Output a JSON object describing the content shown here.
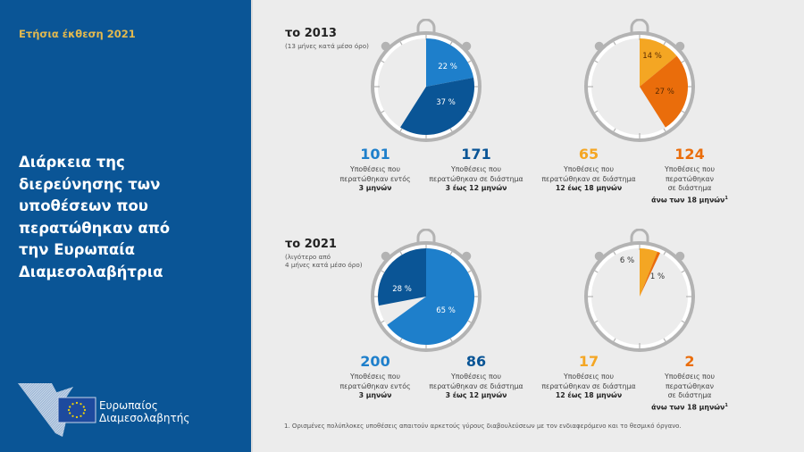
{
  "sidebar": {
    "report": "Ετήσια έκθεση 2021",
    "title_lines": [
      "Διάρκεια της",
      "διερεύνησης των",
      "υποθέσεων που",
      "περατώθηκαν από",
      "την Ευρωπαία",
      "Διαμεσολαβήτρια"
    ],
    "logo_lines": [
      "Ευρωπαίος",
      "Διαμεσολαβητής"
    ]
  },
  "colors": {
    "sidebar_bg": "#0a5596",
    "light_blue": "#1e7fcb",
    "dark_blue": "#0a5596",
    "light_orange": "#f4a623",
    "dark_orange": "#ea6d0b",
    "report_gold": "#e3b94e"
  },
  "sections": [
    {
      "title": "το 2013",
      "sub": [
        "(13 μήνες κατά μέσο όρο)"
      ]
    },
    {
      "title": "το 2021",
      "sub": [
        "(λιγότερο από",
        "4 μήνες κατά μέσο όρο)"
      ]
    }
  ],
  "stats": [
    {
      "num": "101",
      "l1": "Υποθέσεις που",
      "l2": "περατώθηκαν εντός",
      "l3": "",
      "bold": "3 μηνών",
      "sup": ""
    },
    {
      "num": "171",
      "l1": "Υποθέσεις που",
      "l2": "περατώθηκαν σε διάστημα",
      "l3": "",
      "bold": "3 έως 12 μηνών",
      "sup": ""
    },
    {
      "num": "65",
      "l1": "Υποθέσεις που",
      "l2": "περατώθηκαν σε διάστημα",
      "l3": "",
      "bold": "12 έως 18 μηνών",
      "sup": ""
    },
    {
      "num": "124",
      "l1": "Υποθέσεις που",
      "l2": "περατώθηκαν",
      "l3": "σε διάστημα",
      "bold": "άνω των 18 μηνών",
      "sup": "1"
    },
    {
      "num": "200",
      "l1": "Υποθέσεις που",
      "l2": "περατώθηκαν εντός",
      "l3": "",
      "bold": "3 μηνών",
      "sup": ""
    },
    {
      "num": "86",
      "l1": "Υποθέσεις που",
      "l2": "περατώθηκαν σε διάστημα",
      "l3": "",
      "bold": "3 έως 12 μηνών",
      "sup": ""
    },
    {
      "num": "17",
      "l1": "Υποθέσεις που",
      "l2": "περατώθηκαν σε διάστημα",
      "l3": "",
      "bold": "12 έως 18 μηνών",
      "sup": ""
    },
    {
      "num": "2",
      "l1": "Υποθέσεις που",
      "l2": "περατώθηκαν",
      "l3": "σε διάστημα",
      "bold": "άνω των 18 μηνών",
      "sup": "1"
    }
  ],
  "footnote": "1.  Ορισμένες πολύπλοκες υποθέσεις απαιτούν αρκετούς γύρους διαβουλεύσεων με τον ενδιαφερόμενο και το θεσμικό όργανο.",
  "chart_data": [
    {
      "type": "pie",
      "title": "το 2013",
      "categories": [
        "3 μηνών",
        "3 έως 12 μηνών"
      ],
      "values": [
        22,
        37
      ],
      "labels": [
        "22 %",
        "37 %"
      ],
      "counts": [
        101,
        171
      ]
    },
    {
      "type": "pie",
      "title": "το 2013",
      "categories": [
        "12 έως 18 μηνών",
        "άνω των 18 μηνών"
      ],
      "values": [
        14,
        27
      ],
      "labels": [
        "14 %",
        "27 %"
      ],
      "counts": [
        65,
        124
      ]
    },
    {
      "type": "pie",
      "title": "το 2021",
      "categories": [
        "3 μηνών",
        "3 έως 12 μηνών"
      ],
      "values": [
        65,
        28
      ],
      "labels": [
        "65 %",
        "28 %"
      ],
      "counts": [
        200,
        86
      ]
    },
    {
      "type": "pie",
      "title": "το 2021",
      "categories": [
        "12 έως 18 μηνών",
        "άνω των 18 μηνών"
      ],
      "values": [
        6,
        1
      ],
      "labels": [
        "6 %",
        "1 %"
      ],
      "counts": [
        17,
        2
      ]
    }
  ]
}
